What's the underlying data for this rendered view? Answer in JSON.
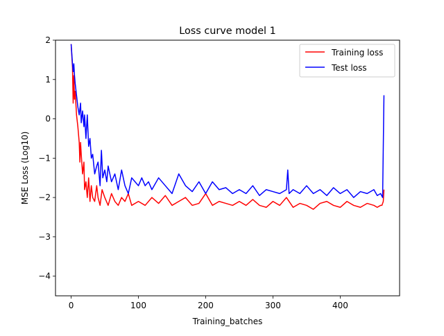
{
  "chart_data": {
    "type": "line",
    "title": "Loss curve model 1",
    "xlabel": "Training_batches",
    "ylabel": "MSE Loss (Log10)",
    "xlim": [
      -23.25,
      488.25
    ],
    "ylim": [
      -4.5,
      2.0
    ],
    "xticks": [
      0,
      100,
      200,
      300,
      400
    ],
    "xtick_labels": [
      "0",
      "100",
      "200",
      "300",
      "400"
    ],
    "yticks": [
      -4,
      -3,
      -2,
      -1,
      0,
      1,
      2
    ],
    "ytick_labels": [
      "−4",
      "−3",
      "−2",
      "−1",
      "0",
      "1",
      "2"
    ],
    "grid": false,
    "legend_position": "top-right",
    "series": [
      {
        "name": "Training loss",
        "color": "#ff0000",
        "x": [
          0,
          2,
          3,
          4,
          5,
          6,
          8,
          10,
          12,
          13,
          14,
          15,
          17,
          19,
          20,
          22,
          24,
          26,
          28,
          30,
          32,
          35,
          38,
          40,
          43,
          46,
          50,
          55,
          60,
          65,
          70,
          75,
          80,
          85,
          90,
          100,
          110,
          120,
          130,
          140,
          150,
          160,
          170,
          180,
          190,
          200,
          210,
          220,
          230,
          240,
          250,
          260,
          270,
          280,
          290,
          300,
          310,
          320,
          330,
          340,
          350,
          360,
          370,
          380,
          390,
          400,
          410,
          420,
          430,
          440,
          450,
          455,
          460,
          462,
          464,
          465
        ],
        "values": [
          1.9,
          1.3,
          0.4,
          1.1,
          0.5,
          0.7,
          0.1,
          -0.2,
          -0.6,
          -1.1,
          -0.6,
          -0.9,
          -1.4,
          -1.1,
          -1.8,
          -1.6,
          -2.0,
          -1.5,
          -2.1,
          -1.7,
          -2.0,
          -2.1,
          -1.7,
          -2.0,
          -2.2,
          -1.8,
          -2.0,
          -2.2,
          -1.9,
          -2.1,
          -2.2,
          -2.0,
          -2.1,
          -1.9,
          -2.2,
          -2.1,
          -2.2,
          -2.0,
          -2.15,
          -1.95,
          -2.2,
          -2.1,
          -2.0,
          -2.2,
          -2.15,
          -1.9,
          -2.2,
          -2.1,
          -2.15,
          -2.2,
          -2.1,
          -2.2,
          -2.05,
          -2.2,
          -2.25,
          -2.1,
          -2.2,
          -2.0,
          -2.25,
          -2.15,
          -2.2,
          -2.3,
          -2.15,
          -2.1,
          -2.2,
          -2.25,
          -2.1,
          -2.2,
          -2.25,
          -2.15,
          -2.2,
          -2.25,
          -2.2,
          -2.2,
          -2.1,
          -1.8
        ]
      },
      {
        "name": "Test loss",
        "color": "#0000ff",
        "x": [
          0,
          2,
          3,
          4,
          5,
          6,
          8,
          10,
          12,
          14,
          15,
          17,
          19,
          20,
          22,
          24,
          26,
          28,
          30,
          32,
          35,
          38,
          40,
          43,
          45,
          47,
          50,
          53,
          55,
          60,
          65,
          70,
          75,
          80,
          85,
          90,
          95,
          100,
          105,
          110,
          115,
          120,
          130,
          140,
          150,
          160,
          170,
          180,
          190,
          200,
          210,
          220,
          230,
          240,
          250,
          260,
          270,
          280,
          290,
          300,
          310,
          320,
          322,
          324,
          330,
          340,
          350,
          360,
          370,
          380,
          390,
          400,
          410,
          420,
          430,
          440,
          450,
          455,
          460,
          463,
          465
        ],
        "values": [
          1.9,
          1.4,
          1.2,
          1.4,
          1.1,
          0.9,
          0.6,
          0.3,
          0.1,
          0.4,
          -0.1,
          0.2,
          -0.2,
          0.1,
          -0.5,
          0.1,
          -0.7,
          -0.5,
          -1.0,
          -0.9,
          -1.4,
          -1.2,
          -1.1,
          -1.7,
          -0.8,
          -1.5,
          -1.3,
          -1.6,
          -1.2,
          -1.6,
          -1.4,
          -1.8,
          -1.3,
          -1.7,
          -1.9,
          -1.5,
          -1.6,
          -1.7,
          -1.5,
          -1.7,
          -1.6,
          -1.8,
          -1.5,
          -1.7,
          -1.9,
          -1.4,
          -1.7,
          -1.85,
          -1.6,
          -1.9,
          -1.6,
          -1.8,
          -1.75,
          -1.9,
          -1.8,
          -1.9,
          -1.7,
          -1.95,
          -1.8,
          -1.85,
          -1.9,
          -1.8,
          -1.3,
          -1.9,
          -1.8,
          -1.9,
          -1.7,
          -1.9,
          -1.8,
          -1.95,
          -1.75,
          -1.9,
          -1.8,
          -2.0,
          -1.85,
          -1.9,
          -1.8,
          -1.95,
          -1.9,
          -2.0,
          0.6
        ]
      }
    ]
  }
}
